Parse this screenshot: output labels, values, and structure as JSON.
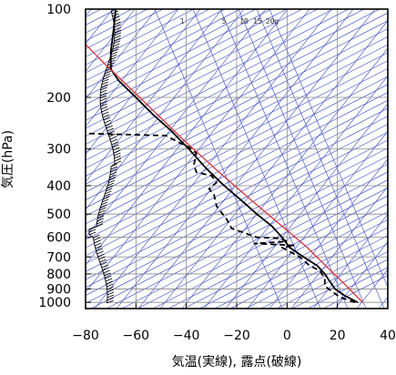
{
  "chart_data": {
    "type": "line",
    "xlabel": "気温(実線), 露点(破線)",
    "ylabel": "気圧(hPa)",
    "xlim": [
      -80,
      40
    ],
    "ylim": [
      1050,
      100
    ],
    "y_scale": "log",
    "x_ticks": [
      "−80",
      "−60",
      "−40",
      "−20",
      "0",
      "20",
      "40"
    ],
    "x_tick_values": [
      -80,
      -60,
      -40,
      -20,
      0,
      20,
      40
    ],
    "y_ticks": [
      "100",
      "200",
      "300",
      "400",
      "500",
      "600",
      "700",
      "800",
      "900",
      "1000"
    ],
    "y_tick_values": [
      100,
      200,
      300,
      400,
      500,
      600,
      700,
      800,
      900,
      1000
    ],
    "mixing_ratio_labels": [
      "1",
      "5",
      "10",
      "15",
      "20g"
    ],
    "grid": true,
    "colors": {
      "temperature": "#000000",
      "dewpoint": "#000000",
      "parcel": "#ee2222",
      "isopleths": "#3344cc",
      "grid": "#888888"
    },
    "series": [
      {
        "style": "solid",
        "points": [
          [
            28,
            1000
          ],
          [
            23,
            950
          ],
          [
            19,
            900
          ],
          [
            17,
            850
          ],
          [
            15,
            800
          ],
          [
            12,
            750
          ],
          [
            6.5,
            700
          ],
          [
            1,
            650
          ],
          [
            -2,
            600
          ],
          [
            -6,
            550
          ],
          [
            -12,
            500
          ],
          [
            -18,
            450
          ],
          [
            -25,
            400
          ],
          [
            -32,
            350
          ],
          [
            -39,
            300
          ],
          [
            -46,
            260
          ],
          [
            -53,
            230
          ],
          [
            -60,
            200
          ],
          [
            -67,
            175
          ],
          [
            -70,
            160
          ],
          [
            -70,
            140
          ],
          [
            -69,
            120
          ],
          [
            -68,
            100
          ]
        ]
      },
      {
        "style": "dashed",
        "points": [
          [
            27,
            1000
          ],
          [
            21,
            960
          ],
          [
            18,
            920
          ],
          [
            15,
            880
          ],
          [
            15,
            830
          ],
          [
            13,
            780
          ],
          [
            9,
            750
          ],
          [
            5,
            700
          ],
          [
            -2,
            650
          ],
          [
            3,
            640
          ],
          [
            -13,
            630
          ],
          [
            0,
            620
          ],
          [
            -3,
            605
          ],
          [
            -12,
            600
          ],
          [
            -22,
            560
          ],
          [
            -24,
            520
          ],
          [
            -28,
            470
          ],
          [
            -29,
            430
          ],
          [
            -31,
            410
          ],
          [
            -28,
            390
          ],
          [
            -30,
            370
          ],
          [
            -36,
            360
          ],
          [
            -37,
            340
          ],
          [
            -36,
            310
          ],
          [
            -39,
            295
          ],
          [
            -43,
            285
          ],
          [
            -48,
            270
          ],
          [
            -83,
            265
          ]
        ]
      },
      {
        "style": "solid",
        "points": [
          [
            30,
            1000
          ],
          [
            23,
            870
          ],
          [
            16,
            760
          ],
          [
            8,
            650
          ],
          [
            -2,
            550
          ],
          [
            -14,
            450
          ],
          [
            -27,
            360
          ],
          [
            -41,
            280
          ],
          [
            -56,
            210
          ],
          [
            -72,
            155
          ],
          [
            -80,
            132
          ]
        ]
      }
    ]
  }
}
